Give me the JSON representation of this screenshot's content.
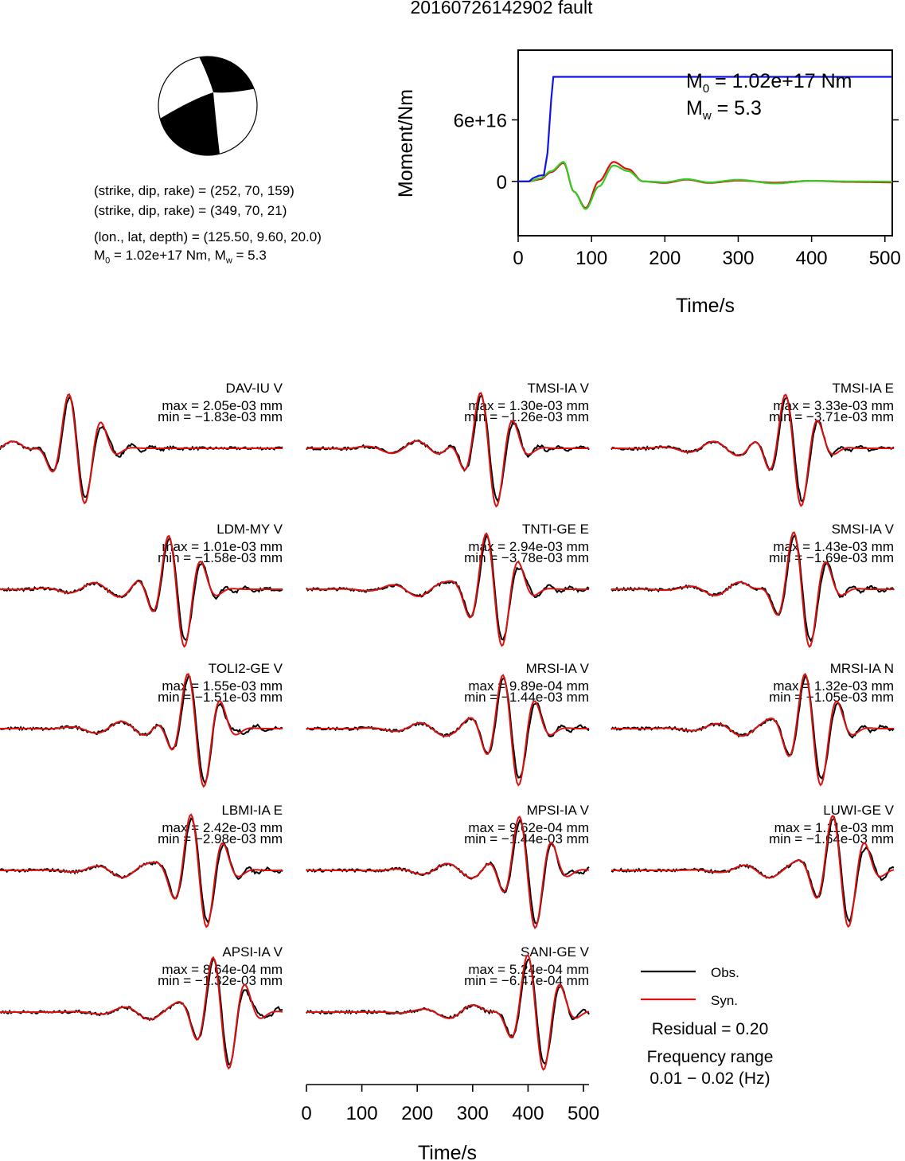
{
  "title": "20160726142902 fault",
  "source_info": {
    "np1": "(strike, dip, rake) = (252, 70, 159)",
    "np2": "(strike, dip, rake) = (349, 70, 21)",
    "location": "(lon., lat, depth) = (125.50, 9.60, 20.0)",
    "m0_prefix": "M",
    "m0_sub": "0",
    "m0_rest": " = 1.02e+17 Nm, M",
    "mw_sub": "w",
    "mw_rest": " = 5.3"
  },
  "moment_panel": {
    "ylabel": "Moment/Nm",
    "xlabel": "Time/s",
    "m0_prefix": "M",
    "m0_sub": "0",
    "m0_text": " = 1.02e+17 Nm",
    "mw_prefix": "M",
    "mw_sub": "w",
    "mw_text": " = 5.3"
  },
  "colors": {
    "obs": "#000000",
    "syn": "#dd1111",
    "moment": "#1111ee",
    "green": "#33cc22"
  },
  "legend": {
    "obs": "Obs.",
    "syn": "Syn.",
    "residual": "Residual = 0.20",
    "freq_title": "Frequency range",
    "freq_value": "0.01 − 0.02 (Hz)"
  },
  "waveform_xlabel": "Time/s",
  "chart_data": [
    {
      "type": "line",
      "name": "moment-function",
      "xlabel": "Time/s",
      "ylabel": "Moment/Nm",
      "xlim": [
        0,
        510
      ],
      "ylim": [
        -5.3e+16,
        1.28e+17
      ],
      "xticks": [
        0,
        100,
        200,
        300,
        400,
        500
      ],
      "yticks": [
        0,
        6e+16
      ],
      "ytick_labels": [
        "0",
        "6e+16"
      ],
      "series": [
        {
          "name": "moment",
          "color": "#1111ee",
          "x": [
            0,
            15,
            20,
            28,
            35,
            40,
            45,
            48,
            510
          ],
          "y": [
            0,
            0,
            3000000000000000.0,
            5500000000000000.0,
            6000000000000000.0,
            2.8e+16,
            8e+16,
            1.02e+17,
            1.02e+17
          ]
        },
        {
          "name": "moment-rate-green",
          "color": "#33cc22",
          "x": [
            0,
            15,
            30,
            45,
            62,
            76,
            92,
            110,
            130,
            150,
            170,
            200,
            230,
            260,
            300,
            350,
            400,
            450,
            510
          ],
          "y": [
            0,
            0,
            3000000000000000.0,
            1e+16,
            1.9e+16,
            -1e+16,
            -2.7e+16,
            -5000000000000000.0,
            1.55e+16,
            1e+16,
            0,
            -800000000000000.0,
            2200000000000000.0,
            -1000000000000000.0,
            1500000000000000.0,
            -2000000000000000.0,
            500000000000000.0,
            0,
            -300000000000000.0
          ]
        },
        {
          "name": "moment-rate-red",
          "color": "#dd1111",
          "x": [
            0,
            15,
            30,
            45,
            62,
            76,
            92,
            110,
            130,
            150,
            170,
            200,
            230,
            260,
            300,
            350,
            400,
            450,
            510
          ],
          "y": [
            0,
            0,
            2000000000000000.0,
            9000000000000000.0,
            1.8e+16,
            -1e+16,
            -2.6e+16,
            0,
            1.9e+16,
            1.2e+16,
            0,
            -1500000000000000.0,
            1700000000000000.0,
            -1500000000000000.0,
            800000000000000.0,
            -1200000000000000.0,
            500000000000000.0,
            -500000000000000.0,
            -1000000000000000.0
          ]
        }
      ]
    },
    {
      "type": "line",
      "name": "waveforms",
      "xlabel": "Time/s",
      "xlim": [
        0,
        510
      ],
      "xticks": [
        0,
        100,
        200,
        300,
        400,
        500
      ],
      "panels": [
        {
          "station": "DAV-IU V",
          "max": "max = 2.05e-03 mm",
          "min": "min = −1.83e-03 mm",
          "t0": 140,
          "amp": 0.95
        },
        {
          "station": "TMSI-IA V",
          "max": "max = 1.30e-03 mm",
          "min": "min = −1.26e-03 mm",
          "t0": 330,
          "amp": 1.0
        },
        {
          "station": "TMSI-IA E",
          "max": "max = 3.33e-03 mm",
          "min": "min = −3.71e-03 mm",
          "t0": 330,
          "amp": 1.0
        },
        {
          "station": "LDM-MY V",
          "max": "max = 1.01e-03 mm",
          "min": "min = −1.58e-03 mm",
          "t0": 320,
          "amp": 1.0
        },
        {
          "station": "TNTI-GE E",
          "max": "max = 2.94e-03 mm",
          "min": "min = −3.78e-03 mm",
          "t0": 340,
          "amp": 1.0
        },
        {
          "station": "SMSI-IA V",
          "max": "max = 1.43e-03 mm",
          "min": "min = −1.69e-03 mm",
          "t0": 345,
          "amp": 1.0
        },
        {
          "station": "TOLI2-GE V",
          "max": "max = 1.55e-03 mm",
          "min": "min = −1.51e-03 mm",
          "t0": 355,
          "amp": 1.0
        },
        {
          "station": "MRSI-IA V",
          "max": "max = 9.89e-04 mm",
          "min": "min = −1.44e-03 mm",
          "t0": 370,
          "amp": 1.0
        },
        {
          "station": "MRSI-IA N",
          "max": "max = 1.32e-03 mm",
          "min": "min = −1.05e-03 mm",
          "t0": 365,
          "amp": 1.0
        },
        {
          "station": "LBMI-IA E",
          "max": "max = 2.42e-03 mm",
          "min": "min = −2.98e-03 mm",
          "t0": 360,
          "amp": 1.0
        },
        {
          "station": "MPSI-IA V",
          "max": "max = 9.62e-04 mm",
          "min": "min = −1.44e-03 mm",
          "t0": 400,
          "amp": 1.0
        },
        {
          "station": "LUWI-GE V",
          "max": "max = 1.11e-03 mm",
          "min": "min = −1.64e-03 mm",
          "t0": 415,
          "amp": 1.0
        },
        {
          "station": "APSI-IA V",
          "max": "max = 8.64e-04 mm",
          "min": "min = −1.32e-03 mm",
          "t0": 400,
          "amp": 1.0
        },
        {
          "station": "SANI-GE V",
          "max": "max = 5.24e-04 mm",
          "min": "min = −6.47e-04 mm",
          "t0": 415,
          "amp": 1.0
        }
      ]
    }
  ]
}
